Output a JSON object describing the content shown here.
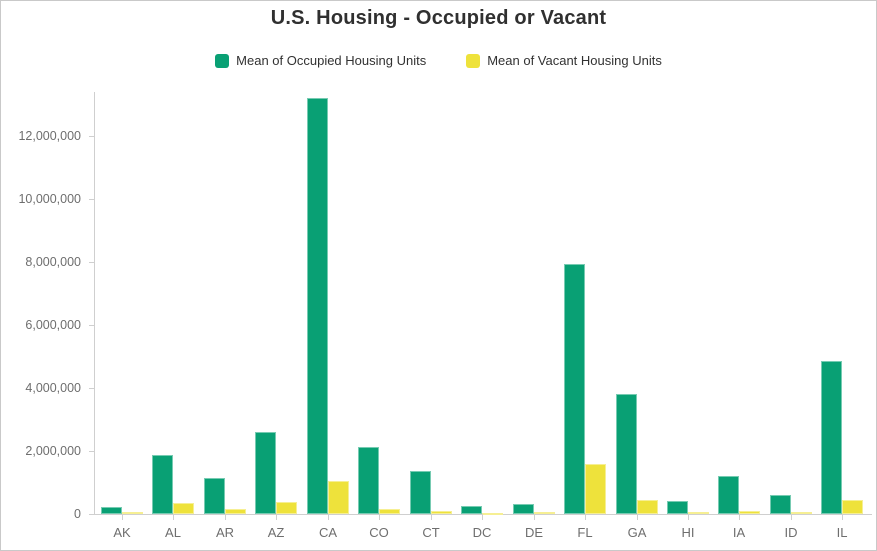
{
  "panel": {
    "title": "U.S. Housing - Occupied or Vacant"
  },
  "legend": {
    "items": [
      {
        "label": "Mean of Occupied Housing Units",
        "color": "#09A074"
      },
      {
        "label": "Mean of Vacant Housing Units",
        "color": "#EEE23B"
      }
    ]
  },
  "chart_data": {
    "type": "bar",
    "title": "U.S. Housing - Occupied or Vacant",
    "xlabel": "",
    "ylabel": "",
    "grid": false,
    "legend_position": "top",
    "categories": [
      "AK",
      "AL",
      "AR",
      "AZ",
      "CA",
      "CO",
      "CT",
      "DC",
      "DE",
      "FL",
      "GA",
      "HI",
      "IA",
      "ID",
      "IL"
    ],
    "series": [
      {
        "name": "Mean of Occupied Housing Units",
        "color": "#09A074",
        "values": [
          230000,
          1860000,
          1130000,
          2600000,
          13200000,
          2140000,
          1350000,
          250000,
          330000,
          7950000,
          3820000,
          420000,
          1220000,
          600000,
          4870000
        ]
      },
      {
        "name": "Mean of Vacant Housing Units",
        "color": "#EEE23B",
        "values": [
          55000,
          340000,
          165000,
          375000,
          1060000,
          165000,
          100000,
          30000,
          50000,
          1600000,
          450000,
          55000,
          100000,
          50000,
          440000
        ]
      }
    ],
    "ylim": [
      0,
      13400000
    ],
    "yticks": [
      0,
      2000000,
      4000000,
      6000000,
      8000000,
      10000000,
      12000000
    ]
  }
}
